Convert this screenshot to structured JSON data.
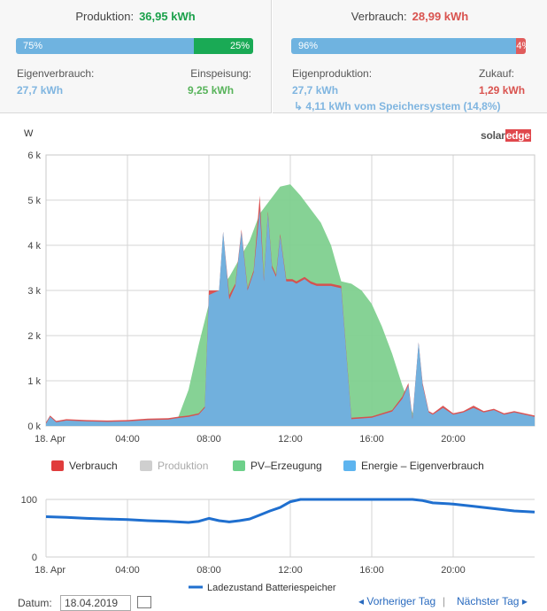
{
  "production": {
    "label": "Produktion:",
    "value": "36,95 kWh",
    "bar_left_label": "75%",
    "bar_right_label": "25%",
    "bar_left_fraction": 0.75,
    "self_consumption_label": "Eigenverbrauch:",
    "self_consumption_value": "27,7 kWh",
    "feed_in_label": "Einspeisung:",
    "feed_in_value": "9,25 kWh"
  },
  "consumption": {
    "label": "Verbrauch:",
    "value": "28,99 kWh",
    "bar_left_label": "96%",
    "bar_right_label": "4%",
    "bar_left_fraction": 0.96,
    "self_production_label": "Eigenproduktion:",
    "self_production_value": "27,7 kWh",
    "purchase_label": "Zukauf:",
    "purchase_value": "1,29 kWh",
    "storage_note": "4,11 kWh vom Speichersystem (14,8%)"
  },
  "brand": {
    "part1": "solar",
    "part2": "edge"
  },
  "colors": {
    "blue": "#6fb3e0",
    "green": "#1aaa55",
    "red": "#e05c5c",
    "consumption": "#d9534f",
    "production_gray": "#c8c8c8",
    "pv_green": "#7fd08f",
    "self_blue": "#6fb3e0",
    "battery_line": "#1f6fcf"
  },
  "legend": {
    "verbrauch": "Verbrauch",
    "produktion": "Produktion",
    "pv": "PV–Erzeugung",
    "energie": "Energie – Eigenverbrauch",
    "battery": "Ladezustand Batteriespeicher"
  },
  "footer": {
    "datum_label": "Datum:",
    "date_value": "18.04.2019",
    "prev_label": "◂ Vorheriger Tag",
    "separator": "|",
    "next_label": "Nächster Tag ▸"
  },
  "chart_data": [
    {
      "type": "area",
      "ylabel": "W",
      "ylim": [
        0,
        6000
      ],
      "y_ticks": [
        "0 k",
        "1 k",
        "2 k",
        "3 k",
        "4 k",
        "5 k",
        "6 k"
      ],
      "x_ticks": [
        "18. Apr",
        "04:00",
        "08:00",
        "12:00",
        "16:00",
        "20:00"
      ],
      "x_range_hours": [
        0,
        24
      ],
      "legend_placement": "bottom",
      "series": [
        {
          "name": "PV–Erzeugung",
          "x": [
            0,
            6,
            6.5,
            7,
            7.5,
            8,
            9,
            10,
            10.5,
            11,
            11.5,
            12,
            12.5,
            13,
            13.5,
            14,
            14.5,
            15,
            15.5,
            16,
            16.5,
            17,
            17.5,
            18,
            18.3,
            19
          ],
          "values": [
            0,
            0,
            200,
            800,
            1800,
            2700,
            3300,
            4100,
            4700,
            5000,
            5300,
            5350,
            5100,
            4800,
            4500,
            4000,
            3200,
            3150,
            3000,
            2700,
            2200,
            1600,
            900,
            300,
            100,
            0
          ]
        },
        {
          "name": "Energie – Eigenverbrauch",
          "x": [
            0,
            0.2,
            0.5,
            1,
            2,
            3,
            4,
            5,
            6,
            6.3,
            6.6,
            7,
            7.5,
            7.8,
            8,
            8.5,
            8.7,
            9,
            9.3,
            9.6,
            9.9,
            10.2,
            10.5,
            10.7,
            10.9,
            11.1,
            11.3,
            11.5,
            11.8,
            12.1,
            12.3,
            12.7,
            13,
            13.3,
            14,
            14.5,
            15,
            16,
            17,
            17.5,
            17.8,
            18,
            18.3,
            18.5,
            18.8,
            19,
            19.5,
            20,
            20.5,
            21,
            21.5,
            22,
            22.5,
            23,
            23.5,
            24
          ],
          "values": [
            50,
            200,
            80,
            120,
            100,
            90,
            100,
            130,
            140,
            160,
            180,
            200,
            250,
            400,
            2900,
            3000,
            4300,
            2800,
            3100,
            4300,
            3000,
            3400,
            4800,
            3200,
            4700,
            3500,
            3300,
            4200,
            3200,
            3200,
            3150,
            3250,
            3150,
            3100,
            3100,
            3050,
            150,
            180,
            320,
            600,
            900,
            150,
            1850,
            900,
            300,
            250,
            400,
            250,
            300,
            400,
            300,
            350,
            250,
            300,
            250,
            200
          ]
        },
        {
          "name": "Verbrauch",
          "x": [
            0,
            0.2,
            0.5,
            1,
            2,
            3,
            4,
            5,
            6,
            6.3,
            6.6,
            7,
            7.5,
            7.8,
            8,
            8.5,
            8.7,
            9,
            9.3,
            9.6,
            9.9,
            10.2,
            10.5,
            10.7,
            10.9,
            11.1,
            11.3,
            11.5,
            11.8,
            12.1,
            12.3,
            12.7,
            13,
            13.3,
            14,
            14.5,
            15,
            16,
            17,
            17.5,
            17.8,
            18,
            18.3,
            18.5,
            18.8,
            19,
            19.5,
            20,
            20.5,
            21,
            21.5,
            22,
            22.5,
            23,
            23.5,
            24
          ],
          "values": [
            80,
            230,
            110,
            150,
            130,
            120,
            130,
            160,
            170,
            190,
            210,
            230,
            280,
            430,
            3000,
            3000,
            4300,
            2900,
            3150,
            4350,
            3050,
            3450,
            5100,
            3250,
            4750,
            3550,
            3350,
            4250,
            3250,
            3250,
            3200,
            3300,
            3200,
            3150,
            3150,
            3100,
            180,
            210,
            350,
            650,
            950,
            180,
            1850,
            950,
            330,
            280,
            450,
            280,
            330,
            450,
            330,
            380,
            280,
            330,
            280,
            230
          ]
        }
      ]
    },
    {
      "type": "line",
      "ylim": [
        0,
        100
      ],
      "y_ticks": [
        "0",
        "100"
      ],
      "x_ticks": [
        "18. Apr",
        "04:00",
        "08:00",
        "12:00",
        "16:00",
        "20:00"
      ],
      "x_range_hours": [
        0,
        24
      ],
      "series": [
        {
          "name": "Ladezustand Batteriespeicher",
          "x": [
            0,
            1,
            2,
            3,
            4,
            5,
            6,
            6.5,
            7,
            7.5,
            8,
            8.5,
            9,
            9.5,
            10,
            10.5,
            11,
            11.5,
            12,
            12.5,
            13,
            14,
            15,
            16,
            17,
            18,
            18.5,
            19,
            20,
            21,
            22,
            23,
            24
          ],
          "values": [
            70,
            69,
            67,
            66,
            65,
            63,
            62,
            61,
            60,
            62,
            67,
            63,
            61,
            63,
            66,
            73,
            80,
            86,
            96,
            100,
            100,
            100,
            100,
            100,
            100,
            100,
            98,
            94,
            92,
            88,
            84,
            80,
            78
          ]
        }
      ]
    }
  ]
}
